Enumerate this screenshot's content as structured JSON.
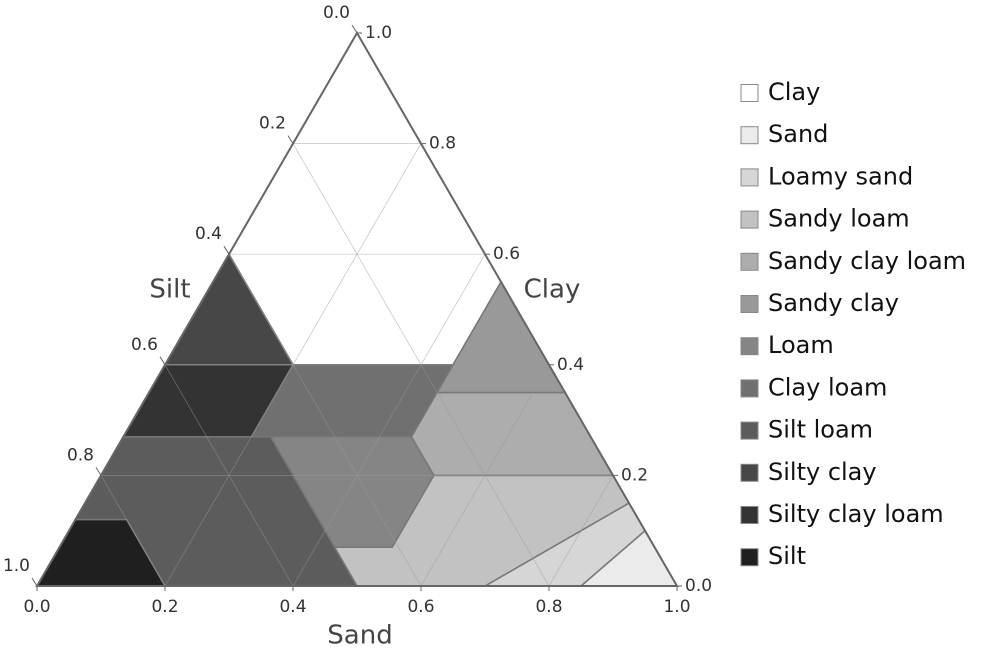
{
  "chart_data": {
    "type": "ternary",
    "axes": [
      {
        "label": "Sand",
        "ticks": [
          {
            "value": 0,
            "label": "0.0"
          },
          0.2,
          0.4,
          0.6,
          0.8,
          {
            "value": 1,
            "label": "1.0"
          }
        ]
      },
      {
        "label": "Clay",
        "ticks": [
          {
            "value": 0,
            "label": "0.0"
          },
          0.2,
          0.4,
          0.6,
          0.8,
          {
            "value": 1,
            "label": "1.0"
          }
        ]
      },
      {
        "label": "Silt",
        "ticks": [
          {
            "value": 0,
            "label": "0.0"
          },
          0.2,
          0.4,
          0.6,
          0.8,
          {
            "value": 1,
            "label": "1.0"
          }
        ]
      }
    ],
    "grid": true,
    "legend": "right",
    "series": [
      {
        "name": "Clay",
        "color": "#ffffff",
        "sand": [
          0,
          0,
          0.2,
          0.45,
          0.45
        ],
        "clay": [
          1,
          0.6,
          0.4,
          0.4,
          0.55
        ]
      },
      {
        "name": "Sand",
        "color": "#ebebeb",
        "sand": [
          1,
          0.85,
          0.9
        ],
        "clay": [
          0,
          0,
          0.1
        ]
      },
      {
        "name": "Loamy sand",
        "color": "#d6d6d6",
        "sand": [
          0.85,
          0.7,
          0.85,
          0.9
        ],
        "clay": [
          0,
          0,
          0.15,
          0.1
        ]
      },
      {
        "name": "Sandy loam",
        "color": "#c2c2c2",
        "sand": [
          0.7,
          0.5,
          0.43,
          0.52,
          0.52,
          0.8,
          0.85
        ],
        "clay": [
          0,
          0,
          0.07,
          0.07,
          0.2,
          0.2,
          0.15
        ]
      },
      {
        "name": "Sandy clay loam",
        "color": "#adadad",
        "sand": [
          0.45,
          0.45,
          0.52,
          0.8,
          0.65
        ],
        "clay": [
          0.35,
          0.27,
          0.2,
          0.2,
          0.35
        ]
      },
      {
        "name": "Sandy clay",
        "color": "#999999",
        "sand": [
          0.45,
          0.45,
          0.65
        ],
        "clay": [
          0.55,
          0.35,
          0.35
        ]
      },
      {
        "name": "Loam",
        "color": "#858585",
        "sand": [
          0.52,
          0.52,
          0.45,
          0.23,
          0.43
        ],
        "clay": [
          0.07,
          0.2,
          0.27,
          0.27,
          0.07
        ]
      },
      {
        "name": "Clay loam",
        "color": "#707070",
        "sand": [
          0.2,
          0.45,
          0.45,
          0.2
        ],
        "clay": [
          0.4,
          0.4,
          0.27,
          0.27
        ]
      },
      {
        "name": "Silt loam",
        "color": "#5c5c5c",
        "sand": [
          0,
          0.23,
          0.5,
          0.2,
          0.08,
          0
        ],
        "clay": [
          0.27,
          0.27,
          0,
          0,
          0.12,
          0.12
        ]
      },
      {
        "name": "Silty clay",
        "color": "#474747",
        "sand": [
          0,
          0.2,
          0
        ],
        "clay": [
          0.6,
          0.4,
          0.4
        ]
      },
      {
        "name": "Silty clay loam",
        "color": "#333333",
        "sand": [
          0,
          0.2,
          0.2,
          0
        ],
        "clay": [
          0.4,
          0.4,
          0.27,
          0.27
        ]
      },
      {
        "name": "Silt",
        "color": "#1f1f1f",
        "sand": [
          0,
          0.08,
          0.2,
          0
        ],
        "clay": [
          0.12,
          0.12,
          0,
          0
        ]
      }
    ]
  }
}
